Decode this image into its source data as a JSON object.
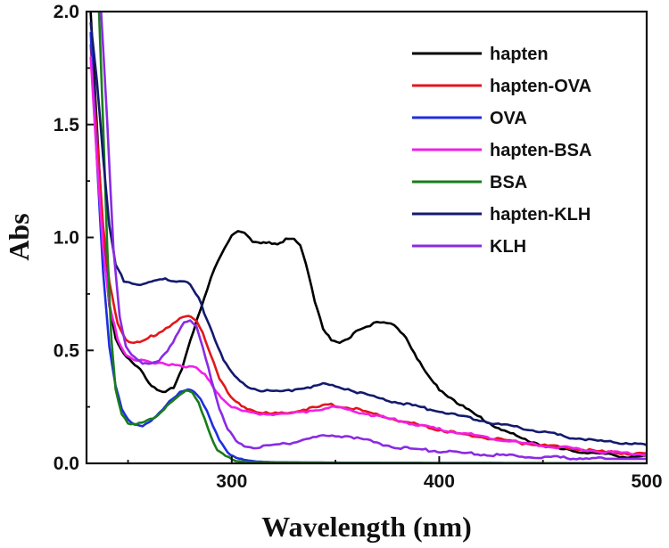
{
  "chart_data": {
    "type": "line",
    "title": "",
    "xlabel": "Wavelength (nm)",
    "ylabel": "Abs",
    "xlim": [
      230,
      500
    ],
    "ylim": [
      0,
      2.0
    ],
    "xticks": [
      300,
      400,
      500
    ],
    "xtick_labels": [
      "300",
      "400",
      "500"
    ],
    "yticks": [
      0.0,
      0.5,
      1.0,
      1.5,
      2.0
    ],
    "ytick_labels": [
      "0.0",
      "0.5",
      "1.0",
      "1.5",
      "2.0"
    ],
    "legend_position": "top-right",
    "series": [
      {
        "name": "hapten",
        "color": "#000000",
        "points": [
          [
            232,
            2.0
          ],
          [
            235,
            1.5
          ],
          [
            238,
            1.0
          ],
          [
            241,
            0.7
          ],
          [
            244,
            0.55
          ],
          [
            248,
            0.48
          ],
          [
            252,
            0.45
          ],
          [
            256,
            0.42
          ],
          [
            260,
            0.36
          ],
          [
            264,
            0.32
          ],
          [
            268,
            0.31
          ],
          [
            272,
            0.34
          ],
          [
            276,
            0.42
          ],
          [
            280,
            0.55
          ],
          [
            285,
            0.68
          ],
          [
            290,
            0.82
          ],
          [
            295,
            0.93
          ],
          [
            300,
            1.01
          ],
          [
            303,
            1.03
          ],
          [
            306,
            1.02
          ],
          [
            310,
            0.98
          ],
          [
            314,
            0.97
          ],
          [
            318,
            0.98
          ],
          [
            322,
            0.97
          ],
          [
            326,
            0.99
          ],
          [
            330,
            0.99
          ],
          [
            333,
            0.96
          ],
          [
            337,
            0.84
          ],
          [
            340,
            0.72
          ],
          [
            344,
            0.6
          ],
          [
            348,
            0.54
          ],
          [
            352,
            0.53
          ],
          [
            356,
            0.55
          ],
          [
            360,
            0.59
          ],
          [
            365,
            0.61
          ],
          [
            370,
            0.62
          ],
          [
            375,
            0.62
          ],
          [
            380,
            0.6
          ],
          [
            384,
            0.56
          ],
          [
            388,
            0.49
          ],
          [
            392,
            0.42
          ],
          [
            396,
            0.37
          ],
          [
            400,
            0.33
          ],
          [
            410,
            0.26
          ],
          [
            420,
            0.2
          ],
          [
            430,
            0.15
          ],
          [
            440,
            0.11
          ],
          [
            450,
            0.08
          ],
          [
            460,
            0.06
          ],
          [
            470,
            0.05
          ],
          [
            480,
            0.04
          ],
          [
            490,
            0.03
          ],
          [
            500,
            0.03
          ]
        ]
      },
      {
        "name": "hapten-OVA",
        "color": "#e3161b",
        "points": [
          [
            232,
            1.85
          ],
          [
            235,
            1.45
          ],
          [
            238,
            1.05
          ],
          [
            241,
            0.8
          ],
          [
            245,
            0.62
          ],
          [
            249,
            0.55
          ],
          [
            253,
            0.53
          ],
          [
            257,
            0.54
          ],
          [
            261,
            0.56
          ],
          [
            265,
            0.58
          ],
          [
            270,
            0.61
          ],
          [
            275,
            0.64
          ],
          [
            279,
            0.65
          ],
          [
            283,
            0.63
          ],
          [
            286,
            0.58
          ],
          [
            290,
            0.48
          ],
          [
            294,
            0.38
          ],
          [
            298,
            0.31
          ],
          [
            302,
            0.27
          ],
          [
            306,
            0.25
          ],
          [
            312,
            0.23
          ],
          [
            318,
            0.22
          ],
          [
            324,
            0.22
          ],
          [
            330,
            0.23
          ],
          [
            336,
            0.24
          ],
          [
            342,
            0.25
          ],
          [
            348,
            0.26
          ],
          [
            354,
            0.25
          ],
          [
            360,
            0.24
          ],
          [
            368,
            0.22
          ],
          [
            376,
            0.2
          ],
          [
            385,
            0.18
          ],
          [
            395,
            0.16
          ],
          [
            410,
            0.13
          ],
          [
            425,
            0.11
          ],
          [
            440,
            0.09
          ],
          [
            460,
            0.07
          ],
          [
            480,
            0.05
          ],
          [
            500,
            0.04
          ]
        ]
      },
      {
        "name": "OVA",
        "color": "#1f2ee0",
        "points": [
          [
            232,
            1.9
          ],
          [
            235,
            1.35
          ],
          [
            238,
            0.85
          ],
          [
            241,
            0.52
          ],
          [
            244,
            0.34
          ],
          [
            247,
            0.24
          ],
          [
            250,
            0.19
          ],
          [
            253,
            0.17
          ],
          [
            257,
            0.17
          ],
          [
            261,
            0.19
          ],
          [
            265,
            0.22
          ],
          [
            270,
            0.27
          ],
          [
            275,
            0.31
          ],
          [
            279,
            0.33
          ],
          [
            282,
            0.32
          ],
          [
            285,
            0.29
          ],
          [
            288,
            0.23
          ],
          [
            291,
            0.16
          ],
          [
            294,
            0.1
          ],
          [
            298,
            0.05
          ],
          [
            302,
            0.03
          ],
          [
            306,
            0.015
          ],
          [
            312,
            0.008
          ],
          [
            320,
            0.005
          ],
          [
            350,
            0.003
          ],
          [
            400,
            0.002
          ],
          [
            500,
            0.0
          ]
        ]
      },
      {
        "name": "hapten-BSA",
        "color": "#f020e8",
        "points": [
          [
            232,
            1.8
          ],
          [
            235,
            1.35
          ],
          [
            238,
            0.95
          ],
          [
            241,
            0.7
          ],
          [
            245,
            0.55
          ],
          [
            249,
            0.48
          ],
          [
            253,
            0.46
          ],
          [
            258,
            0.45
          ],
          [
            263,
            0.44
          ],
          [
            268,
            0.44
          ],
          [
            273,
            0.44
          ],
          [
            278,
            0.43
          ],
          [
            283,
            0.42
          ],
          [
            287,
            0.39
          ],
          [
            291,
            0.34
          ],
          [
            295,
            0.29
          ],
          [
            300,
            0.25
          ],
          [
            305,
            0.23
          ],
          [
            312,
            0.22
          ],
          [
            320,
            0.22
          ],
          [
            328,
            0.22
          ],
          [
            336,
            0.23
          ],
          [
            342,
            0.24
          ],
          [
            348,
            0.25
          ],
          [
            354,
            0.24
          ],
          [
            360,
            0.23
          ],
          [
            370,
            0.21
          ],
          [
            380,
            0.19
          ],
          [
            390,
            0.17
          ],
          [
            400,
            0.15
          ],
          [
            420,
            0.12
          ],
          [
            440,
            0.09
          ],
          [
            460,
            0.07
          ],
          [
            480,
            0.05
          ],
          [
            500,
            0.04
          ]
        ]
      },
      {
        "name": "BSA",
        "color": "#1a7d1a",
        "points": [
          [
            236,
            2.0
          ],
          [
            238,
            1.5
          ],
          [
            240,
            0.95
          ],
          [
            242,
            0.55
          ],
          [
            244,
            0.33
          ],
          [
            247,
            0.22
          ],
          [
            250,
            0.18
          ],
          [
            254,
            0.17
          ],
          [
            258,
            0.18
          ],
          [
            262,
            0.2
          ],
          [
            266,
            0.23
          ],
          [
            270,
            0.27
          ],
          [
            275,
            0.3
          ],
          [
            278,
            0.32
          ],
          [
            281,
            0.31
          ],
          [
            284,
            0.27
          ],
          [
            287,
            0.2
          ],
          [
            290,
            0.12
          ],
          [
            293,
            0.06
          ],
          [
            297,
            0.03
          ],
          [
            302,
            0.01
          ],
          [
            310,
            0.005
          ],
          [
            350,
            0.002
          ],
          [
            500,
            0.0
          ]
        ]
      },
      {
        "name": "hapten-KLH",
        "color": "#131a6e",
        "points": [
          [
            232,
            1.95
          ],
          [
            235,
            1.7
          ],
          [
            238,
            1.35
          ],
          [
            241,
            1.05
          ],
          [
            244,
            0.88
          ],
          [
            248,
            0.81
          ],
          [
            252,
            0.8
          ],
          [
            256,
            0.79
          ],
          [
            260,
            0.8
          ],
          [
            264,
            0.81
          ],
          [
            268,
            0.82
          ],
          [
            272,
            0.81
          ],
          [
            276,
            0.81
          ],
          [
            280,
            0.79
          ],
          [
            284,
            0.73
          ],
          [
            288,
            0.64
          ],
          [
            292,
            0.55
          ],
          [
            296,
            0.46
          ],
          [
            300,
            0.4
          ],
          [
            304,
            0.36
          ],
          [
            308,
            0.34
          ],
          [
            314,
            0.32
          ],
          [
            320,
            0.32
          ],
          [
            326,
            0.32
          ],
          [
            332,
            0.33
          ],
          [
            338,
            0.34
          ],
          [
            344,
            0.35
          ],
          [
            350,
            0.34
          ],
          [
            356,
            0.33
          ],
          [
            362,
            0.31
          ],
          [
            370,
            0.29
          ],
          [
            380,
            0.27
          ],
          [
            390,
            0.25
          ],
          [
            400,
            0.23
          ],
          [
            415,
            0.2
          ],
          [
            430,
            0.17
          ],
          [
            445,
            0.15
          ],
          [
            460,
            0.12
          ],
          [
            475,
            0.1
          ],
          [
            490,
            0.09
          ],
          [
            500,
            0.08
          ]
        ]
      },
      {
        "name": "KLH",
        "color": "#8a2be2",
        "points": [
          [
            237,
            2.0
          ],
          [
            240,
            1.5
          ],
          [
            243,
            0.95
          ],
          [
            246,
            0.65
          ],
          [
            249,
            0.52
          ],
          [
            253,
            0.47
          ],
          [
            257,
            0.44
          ],
          [
            261,
            0.44
          ],
          [
            265,
            0.46
          ],
          [
            269,
            0.5
          ],
          [
            273,
            0.56
          ],
          [
            277,
            0.62
          ],
          [
            280,
            0.63
          ],
          [
            283,
            0.6
          ],
          [
            286,
            0.52
          ],
          [
            290,
            0.38
          ],
          [
            294,
            0.24
          ],
          [
            298,
            0.15
          ],
          [
            302,
            0.1
          ],
          [
            306,
            0.08
          ],
          [
            312,
            0.07
          ],
          [
            320,
            0.08
          ],
          [
            328,
            0.09
          ],
          [
            336,
            0.11
          ],
          [
            344,
            0.12
          ],
          [
            350,
            0.12
          ],
          [
            356,
            0.12
          ],
          [
            362,
            0.11
          ],
          [
            370,
            0.09
          ],
          [
            380,
            0.07
          ],
          [
            392,
            0.06
          ],
          [
            405,
            0.05
          ],
          [
            420,
            0.04
          ],
          [
            440,
            0.03
          ],
          [
            460,
            0.025
          ],
          [
            480,
            0.02
          ],
          [
            500,
            0.02
          ]
        ]
      }
    ]
  }
}
